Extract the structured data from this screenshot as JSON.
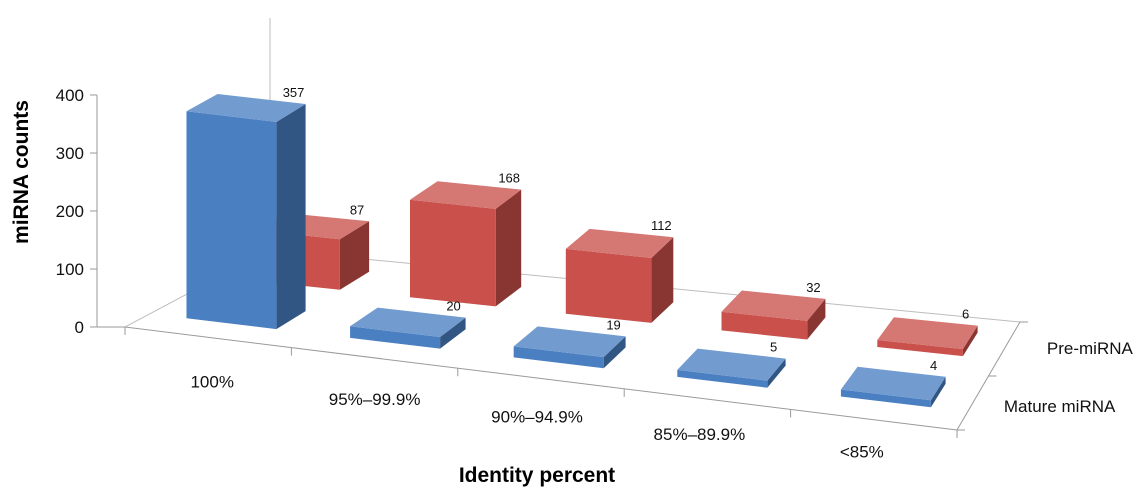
{
  "chart_data": {
    "type": "bar",
    "title": "",
    "xlabel": "Identity percent",
    "ylabel": "miRNA counts",
    "ylim": [
      0,
      400
    ],
    "yticks": [
      0,
      100,
      200,
      300,
      400
    ],
    "categories": [
      "100%",
      "95%–99.9%",
      "90%–94.9%",
      "85%–89.9%",
      "<85%"
    ],
    "series": [
      {
        "name": "Mature miRNA",
        "values": [
          357,
          20,
          19,
          5,
          4
        ],
        "color": "#4a7fc1"
      },
      {
        "name": "Pre-miRNA",
        "values": [
          87,
          168,
          112,
          32,
          6
        ],
        "color": "#c9504b"
      }
    ],
    "grid": false,
    "legend": "series labels on depth axis (right)"
  }
}
